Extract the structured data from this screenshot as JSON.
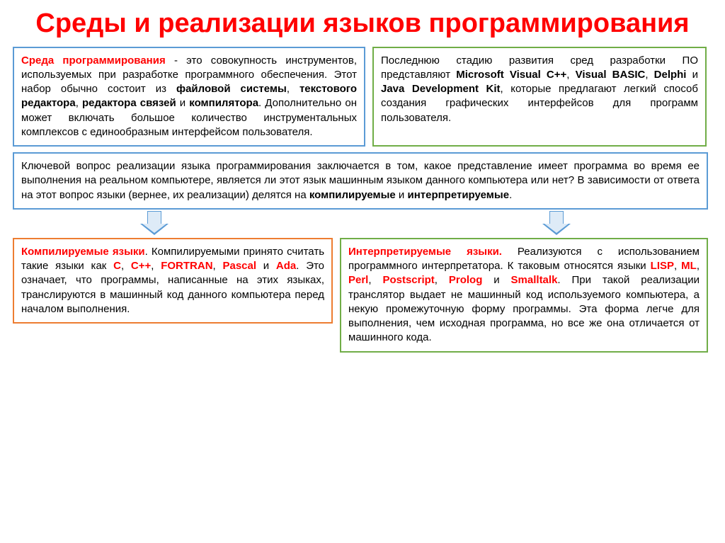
{
  "title": "Среды и реализации языков программирования",
  "colors": {
    "title": "#ff0000",
    "blue_border": "#5b9bd5",
    "green_border": "#70ad47",
    "orange_border": "#ed7d31",
    "arrow_fill": "#deebf7"
  },
  "box_top_left": {
    "lead_red": "Среда программирования",
    "t1": " - это совокупность инструментов, используемых при разработке программного обеспечения. Этот набор обычно состоит из ",
    "b1": "файловой системы",
    "t2": ", ",
    "b2": "текстового редактора",
    "t3": ", ",
    "b3": "редактора связей",
    "t4": " и ",
    "b4": "компилятора",
    "t5": ". Дополнительно он может включать большое количество инструментальных комплексов с единообразным интерфейсом пользователя."
  },
  "box_top_right": {
    "t1": "Последнюю стадию развития сред разработки ПО представляют ",
    "b1": "Microsoft Visual C++",
    "t2": ", ",
    "b2": "Visual BASIC",
    "t3": ", ",
    "b3": "Delphi",
    "t4": " и ",
    "b4": "Java Development Kit",
    "t5": ", которые предлагают легкий способ создания графических интерфейсов для программ пользователя."
  },
  "box_mid": {
    "t1": "Ключевой вопрос реализации языка программирования заключается в том, какое представление имеет программа во время ее выполнения на реальном компьютере, является ли этот язык машинным языком данного компьютера или нет? В зависимости от ответа на этот вопрос языки (вернее, их реализации) делятся на ",
    "b1": "компилируемые",
    "t2": " и ",
    "b2": "интерпретируемые",
    "t3": "."
  },
  "box_bottom_left": {
    "lead_red": "Компилируемые языки",
    "t1": ". Компилируемыми принято считать такие языки как ",
    "r1": "C",
    "t2": ", ",
    "r2": "C++",
    "t3": ", ",
    "r3": "FORTRAN",
    "t4": ", ",
    "r4": "Pascal",
    "t5": " и ",
    "r5": "Ada",
    "t6": ". Это означает, что программы, написанные на этих языках, транслируются в машинный код данного компьютера перед началом выполнения."
  },
  "box_bottom_right": {
    "lead_red": "Интерпретируемые языки.",
    "t1": " Реализуются с использованием программного интерпретатора. К таковым относятся языки ",
    "r1": "LISP",
    "t2": ", ",
    "r2": "ML",
    "t3": ", ",
    "r3": "Perl",
    "t4": ", ",
    "r4": "Postscript",
    "t5": ", ",
    "r5": "Prolog",
    "t6": " и ",
    "r6": "Smalltalk",
    "t7": ". При такой реализации транслятор выдает не машинный код используемого компьютера, а некую промежуточную форму программы. Эта форма легче для выполнения, чем исходная программа, но все же она отличается от машинного кода."
  }
}
